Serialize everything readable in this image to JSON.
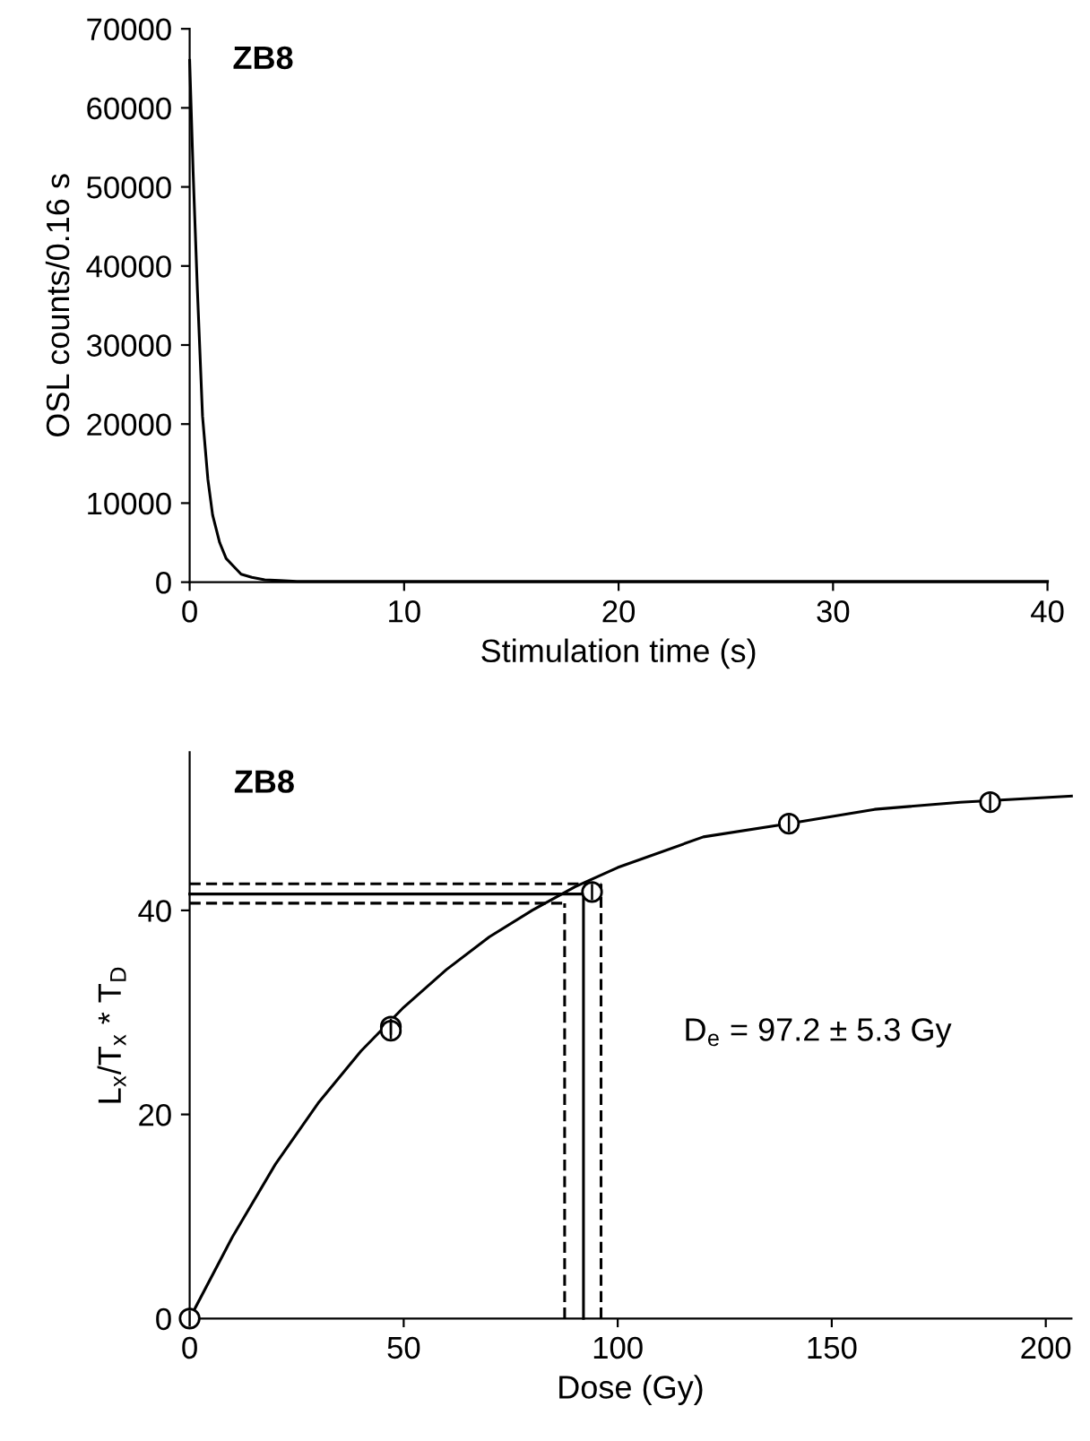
{
  "chart_data": [
    {
      "type": "line",
      "title": "ZB8",
      "xlabel": "Stimulation time (s)",
      "ylabel": "OSL counts/0.16 s",
      "xlim": [
        0,
        40
      ],
      "ylim": [
        0,
        70000
      ],
      "xticks": [
        0,
        10,
        20,
        30,
        40
      ],
      "yticks": [
        0,
        10000,
        20000,
        30000,
        40000,
        50000,
        60000,
        70000
      ],
      "grid": false,
      "legend": false,
      "series": [
        {
          "color": "#000000",
          "x": [
            0,
            0.16,
            0.36,
            0.6,
            0.85,
            1.07,
            1.4,
            1.7,
            2.05,
            2.4,
            2.9,
            3.5,
            4.2,
            5,
            7,
            10,
            15,
            20,
            25,
            30,
            35,
            40
          ],
          "values": [
            66000,
            52000,
            37000,
            21000,
            13000,
            8500,
            5000,
            3000,
            2000,
            1000,
            600,
            300,
            200,
            100,
            100,
            100,
            100,
            100,
            100,
            100,
            100,
            100
          ]
        }
      ]
    },
    {
      "type": "scatter",
      "title": "ZB8",
      "xlabel": "Dose (Gy)",
      "ylabel": "L$_{x}$/T$_{x}$ * T$_{D}$",
      "xlim": [
        0,
        206
      ],
      "ylim": [
        0,
        55.5
      ],
      "xticks": [
        0,
        50,
        100,
        150,
        200
      ],
      "yticks": [
        0,
        20,
        40
      ],
      "grid": false,
      "legend": false,
      "annotations": [
        "D$_{e}$ = 97.2 ± 5.3 Gy"
      ],
      "series": [
        {
          "type": "line",
          "color": "#000000",
          "line_style": "solid",
          "marker": "none",
          "x": [
            0,
            10,
            20,
            30,
            40,
            50,
            60,
            70,
            80,
            90,
            100,
            120,
            140,
            160,
            180,
            206
          ],
          "values": [
            0,
            8.0,
            15.1,
            21.1,
            26.2,
            30.5,
            34.2,
            37.4,
            40.0,
            42.3,
            44.2,
            47.2,
            48.5,
            49.9,
            50.6,
            51.2
          ]
        },
        {
          "type": "scatter",
          "color": "#000000",
          "marker": "circle",
          "x": [
            0,
            47,
            47,
            94,
            140,
            187
          ],
          "values": [
            0,
            28.6,
            28.2,
            41.8,
            48.5,
            50.6
          ],
          "errors": [
            0.8,
            0.8,
            0.8,
            0.8,
            0.8,
            0.8
          ]
        },
        {
          "type": "line",
          "color": "#000000",
          "line_style": "solid",
          "marker": "none",
          "x": [
            0,
            92.0
          ],
          "values": [
            41.6,
            41.6
          ]
        },
        {
          "type": "line",
          "color": "#000000",
          "line_style": "dashed",
          "marker": "none",
          "x": [
            0,
            96.1
          ],
          "values": [
            42.6,
            42.6
          ]
        },
        {
          "type": "line",
          "color": "#000000",
          "line_style": "dashed",
          "marker": "none",
          "x": [
            0,
            87.6
          ],
          "values": [
            40.7,
            40.7
          ]
        },
        {
          "type": "line",
          "color": "#000000",
          "line_style": "solid",
          "marker": "none",
          "x": [
            92.0,
            92.0
          ],
          "values": [
            0,
            41.6
          ]
        },
        {
          "type": "line",
          "color": "#000000",
          "line_style": "dashed",
          "marker": "none",
          "x": [
            87.6,
            87.6
          ],
          "values": [
            0,
            40.7
          ]
        },
        {
          "type": "line",
          "color": "#000000",
          "line_style": "dashed",
          "marker": "none",
          "x": [
            96.1,
            96.1
          ],
          "values": [
            0,
            42.6
          ]
        }
      ]
    }
  ]
}
